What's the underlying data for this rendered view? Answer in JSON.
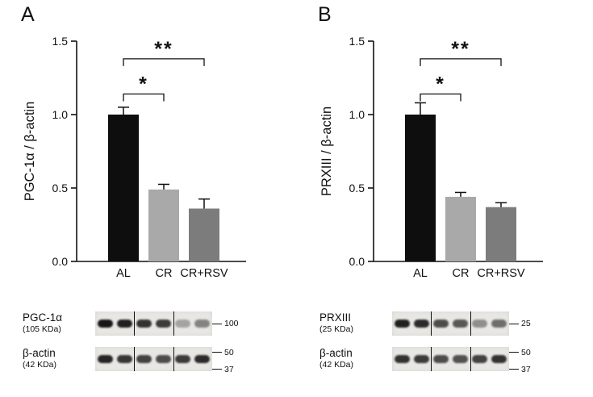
{
  "chart_data": [
    {
      "panel": "A",
      "type": "bar",
      "title": "",
      "xlabel": "",
      "ylabel": "PGC-1α / β-actin",
      "ylim": [
        0,
        1.5
      ],
      "yticks": [
        "0.0",
        "0.5",
        "1.0",
        "1.5"
      ],
      "categories": [
        "AL",
        "CR",
        "CR+RSV"
      ],
      "values": [
        1.0,
        0.49,
        0.36
      ],
      "errors": [
        0.05,
        0.035,
        0.065
      ],
      "bar_colors": [
        "#0e0e0e",
        "#a9a9a9",
        "#7c7c7c"
      ],
      "significance": [
        {
          "from": 0,
          "to": 1,
          "label": "*",
          "height": 1.14
        },
        {
          "from": 0,
          "to": 2,
          "label": "**",
          "height": 1.38
        }
      ],
      "grid": false,
      "legend": "none"
    },
    {
      "panel": "B",
      "type": "bar",
      "title": "",
      "xlabel": "",
      "ylabel": "PRXIII / β-actin",
      "ylim": [
        0,
        1.5
      ],
      "yticks": [
        "0.0",
        "0.5",
        "1.0",
        "1.5"
      ],
      "categories": [
        "AL",
        "CR",
        "CR+RSV"
      ],
      "values": [
        1.0,
        0.44,
        0.37
      ],
      "errors": [
        0.08,
        0.03,
        0.03
      ],
      "bar_colors": [
        "#0e0e0e",
        "#a9a9a9",
        "#7c7c7c"
      ],
      "significance": [
        {
          "from": 0,
          "to": 1,
          "label": "*",
          "height": 1.14
        },
        {
          "from": 0,
          "to": 2,
          "label": "**",
          "height": 1.38
        }
      ],
      "grid": false,
      "legend": "none"
    }
  ],
  "blots": [
    {
      "panel": "A",
      "rows": [
        {
          "label": "PGC-1α",
          "sublabel": "(105 KDa)",
          "markers": [
            {
              "label": "100",
              "pos": 0.5
            }
          ],
          "bands": [
            0.95,
            0.9,
            0.82,
            0.78,
            0.3,
            0.45
          ]
        },
        {
          "label": "β-actin",
          "sublabel": "(42 KDa)",
          "markers": [
            {
              "label": "50",
              "pos": 0.22
            },
            {
              "label": "37",
              "pos": 0.92
            }
          ],
          "bands": [
            0.88,
            0.8,
            0.75,
            0.7,
            0.78,
            0.85
          ]
        }
      ]
    },
    {
      "panel": "B",
      "rows": [
        {
          "label": "PRXIII",
          "sublabel": "(25 KDa)",
          "markers": [
            {
              "label": "25",
              "pos": 0.5
            }
          ],
          "bands": [
            0.9,
            0.85,
            0.7,
            0.65,
            0.4,
            0.55
          ]
        },
        {
          "label": "β-actin",
          "sublabel": "(42 KDa)",
          "markers": [
            {
              "label": "50",
              "pos": 0.22
            },
            {
              "label": "37",
              "pos": 0.92
            }
          ],
          "bands": [
            0.82,
            0.78,
            0.7,
            0.68,
            0.75,
            0.82
          ]
        }
      ]
    }
  ]
}
